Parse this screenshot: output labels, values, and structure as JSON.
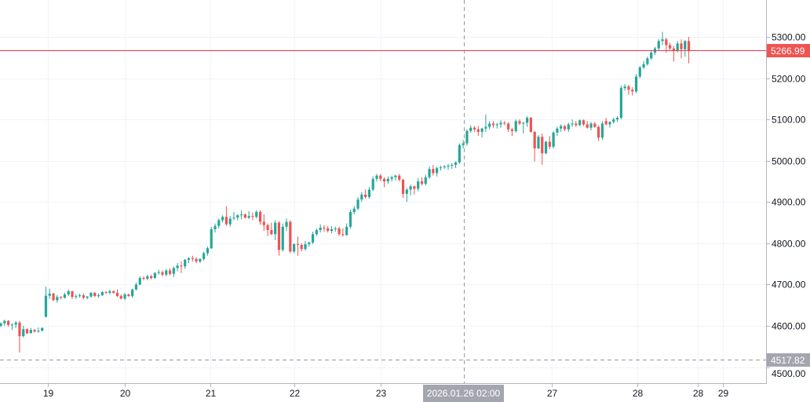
{
  "chart_data": {
    "type": "candlestick",
    "title": "",
    "colors": {
      "up": "#26a69a",
      "down": "#ef5350",
      "price_line": "#f23645",
      "crosshair": "#9598a1",
      "grid": "#f0f3fa"
    },
    "ylim": [
      4480,
      5400
    ],
    "y_ticks": [
      "4500.00",
      "4600.00",
      "4700.00",
      "4800.00",
      "4900.00",
      "5000.00",
      "5100.00",
      "5200.00",
      "5300.00"
    ],
    "y_tick_values": [
      4500,
      4600,
      4700,
      4800,
      4900,
      5000,
      5100,
      5200,
      5300
    ],
    "x_ticks": [
      "19",
      "20",
      "21",
      "22",
      "23",
      "27",
      "28",
      "28",
      "29"
    ],
    "crosshair_time_label": "2026.01.26 02:00",
    "last_price": 5266.99,
    "last_price_label": "5266.99",
    "crosshair_price": 4517.82,
    "crosshair_price_label": "4517.82",
    "candles_ohlc": [
      [
        4600,
        4608,
        4597,
        4606
      ],
      [
        4606,
        4615,
        4600,
        4612
      ],
      [
        4612,
        4614,
        4598,
        4602
      ],
      [
        4602,
        4606,
        4590,
        4603
      ],
      [
        4603,
        4612,
        4595,
        4608
      ],
      [
        4608,
        4612,
        4535,
        4575
      ],
      [
        4575,
        4600,
        4572,
        4592
      ],
      [
        4592,
        4594,
        4580,
        4582
      ],
      [
        4582,
        4595,
        4582,
        4590
      ],
      [
        4590,
        4592,
        4584,
        4586
      ],
      [
        4586,
        4596,
        4583,
        4588
      ],
      [
        4588,
        4596,
        4587,
        4595
      ],
      [
        4622,
        4695,
        4620,
        4673
      ],
      [
        4673,
        4690,
        4665,
        4678
      ],
      [
        4678,
        4680,
        4660,
        4662
      ],
      [
        4662,
        4675,
        4656,
        4670
      ],
      [
        4670,
        4672,
        4664,
        4668
      ],
      [
        4668,
        4680,
        4666,
        4676
      ],
      [
        4676,
        4688,
        4672,
        4684
      ],
      [
        4684,
        4685,
        4665,
        4670
      ],
      [
        4670,
        4676,
        4665,
        4672
      ],
      [
        4672,
        4678,
        4668,
        4674
      ],
      [
        4674,
        4678,
        4664,
        4668
      ],
      [
        4668,
        4672,
        4664,
        4671
      ],
      [
        4671,
        4682,
        4668,
        4680
      ],
      [
        4680,
        4682,
        4670,
        4672
      ],
      [
        4672,
        4678,
        4668,
        4674
      ],
      [
        4674,
        4684,
        4672,
        4682
      ],
      [
        4682,
        4684,
        4677,
        4680
      ],
      [
        4680,
        4688,
        4676,
        4684
      ],
      [
        4684,
        4686,
        4678,
        4680
      ],
      [
        4680,
        4688,
        4670,
        4672
      ],
      [
        4672,
        4676,
        4664,
        4666
      ],
      [
        4666,
        4680,
        4662,
        4676
      ],
      [
        4676,
        4678,
        4670,
        4672
      ],
      [
        4672,
        4690,
        4668,
        4688
      ],
      [
        4688,
        4705,
        4686,
        4700
      ],
      [
        4700,
        4720,
        4698,
        4716
      ],
      [
        4716,
        4720,
        4710,
        4714
      ],
      [
        4714,
        4724,
        4710,
        4720
      ],
      [
        4720,
        4724,
        4712,
        4716
      ],
      [
        4716,
        4730,
        4714,
        4728
      ],
      [
        4728,
        4736,
        4724,
        4730
      ],
      [
        4730,
        4734,
        4720,
        4724
      ],
      [
        4724,
        4738,
        4720,
        4734
      ],
      [
        4734,
        4740,
        4722,
        4726
      ],
      [
        4726,
        4744,
        4718,
        4740
      ],
      [
        4740,
        4752,
        4732,
        4746
      ],
      [
        4746,
        4756,
        4728,
        4744
      ],
      [
        4744,
        4762,
        4738,
        4760
      ],
      [
        4760,
        4766,
        4752,
        4764
      ],
      [
        4764,
        4770,
        4756,
        4762
      ],
      [
        4762,
        4766,
        4752,
        4756
      ],
      [
        4756,
        4764,
        4752,
        4762
      ],
      [
        4762,
        4780,
        4758,
        4776
      ],
      [
        4776,
        4792,
        4770,
        4788
      ],
      [
        4788,
        4840,
        4786,
        4834
      ],
      [
        4834,
        4848,
        4826,
        4842
      ],
      [
        4842,
        4860,
        4836,
        4856
      ],
      [
        4856,
        4868,
        4850,
        4864
      ],
      [
        4864,
        4890,
        4842,
        4846
      ],
      [
        4846,
        4866,
        4840,
        4860
      ],
      [
        4860,
        4876,
        4856,
        4862
      ],
      [
        4862,
        4870,
        4856,
        4868
      ],
      [
        4868,
        4880,
        4858,
        4870
      ],
      [
        4870,
        4872,
        4860,
        4862
      ],
      [
        4862,
        4878,
        4858,
        4866
      ],
      [
        4866,
        4874,
        4856,
        4864
      ],
      [
        4864,
        4880,
        4860,
        4876
      ],
      [
        4876,
        4880,
        4845,
        4852
      ],
      [
        4852,
        4870,
        4830,
        4844
      ],
      [
        4844,
        4848,
        4818,
        4832
      ],
      [
        4832,
        4850,
        4820,
        4822
      ],
      [
        4822,
        4856,
        4808,
        4850
      ],
      [
        4850,
        4854,
        4770,
        4784
      ],
      [
        4784,
        4848,
        4780,
        4840
      ],
      [
        4840,
        4860,
        4830,
        4852
      ],
      [
        4852,
        4856,
        4776,
        4780
      ],
      [
        4780,
        4800,
        4776,
        4798
      ],
      [
        4798,
        4816,
        4770,
        4796
      ],
      [
        4796,
        4800,
        4780,
        4786
      ],
      [
        4786,
        4806,
        4782,
        4798
      ],
      [
        4798,
        4804,
        4792,
        4802
      ],
      [
        4802,
        4828,
        4798,
        4822
      ],
      [
        4822,
        4836,
        4818,
        4832
      ],
      [
        4832,
        4846,
        4826,
        4838
      ],
      [
        4838,
        4844,
        4828,
        4836
      ],
      [
        4836,
        4842,
        4826,
        4830
      ],
      [
        4830,
        4842,
        4824,
        4834
      ],
      [
        4834,
        4840,
        4828,
        4836
      ],
      [
        4836,
        4840,
        4818,
        4822
      ],
      [
        4822,
        4836,
        4816,
        4820
      ],
      [
        4820,
        4848,
        4818,
        4840
      ],
      [
        4840,
        4882,
        4836,
        4876
      ],
      [
        4876,
        4890,
        4870,
        4884
      ],
      [
        4884,
        4912,
        4880,
        4906
      ],
      [
        4906,
        4924,
        4900,
        4918
      ],
      [
        4918,
        4930,
        4908,
        4912
      ],
      [
        4912,
        4936,
        4908,
        4930
      ],
      [
        4930,
        4962,
        4926,
        4956
      ],
      [
        4956,
        4968,
        4950,
        4964
      ],
      [
        4964,
        4968,
        4950,
        4956
      ],
      [
        4956,
        4960,
        4936,
        4950
      ],
      [
        4950,
        4962,
        4944,
        4956
      ],
      [
        4956,
        4964,
        4950,
        4960
      ],
      [
        4960,
        4966,
        4952,
        4964
      ],
      [
        4964,
        4968,
        4950,
        4954
      ],
      [
        4954,
        4956,
        4910,
        4920
      ],
      [
        4920,
        4934,
        4900,
        4930
      ],
      [
        4930,
        4942,
        4916,
        4938
      ],
      [
        4938,
        4940,
        4918,
        4932
      ],
      [
        4932,
        4958,
        4926,
        4950
      ],
      [
        4950,
        4960,
        4940,
        4944
      ],
      [
        4944,
        4966,
        4940,
        4960
      ],
      [
        4960,
        4986,
        4956,
        4980
      ],
      [
        4980,
        4990,
        4964,
        4970
      ],
      [
        4970,
        4986,
        4962,
        4982
      ],
      [
        4982,
        4988,
        4976,
        4984
      ],
      [
        4984,
        4990,
        4980,
        4986
      ],
      [
        4986,
        4992,
        4978,
        4988
      ],
      [
        4988,
        4994,
        4980,
        4990
      ],
      [
        4990,
        4998,
        4982,
        4996
      ],
      [
        4996,
        5042,
        4992,
        5038
      ],
      [
        5038,
        5050,
        5030,
        5042
      ],
      [
        5042,
        5076,
        5036,
        5072
      ],
      [
        5072,
        5086,
        5068,
        5080
      ],
      [
        5080,
        5084,
        5070,
        5076
      ],
      [
        5076,
        5084,
        5060,
        5070
      ],
      [
        5070,
        5080,
        5056,
        5078
      ],
      [
        5078,
        5112,
        5070,
        5082
      ],
      [
        5082,
        5096,
        5076,
        5090
      ],
      [
        5090,
        5096,
        5080,
        5086
      ],
      [
        5086,
        5092,
        5078,
        5088
      ],
      [
        5088,
        5098,
        5080,
        5092
      ],
      [
        5092,
        5096,
        5086,
        5090
      ],
      [
        5090,
        5094,
        5070,
        5076
      ],
      [
        5076,
        5080,
        5060,
        5072
      ],
      [
        5072,
        5100,
        5068,
        5096
      ],
      [
        5096,
        5100,
        5086,
        5090
      ],
      [
        5090,
        5094,
        5066,
        5092
      ],
      [
        5092,
        5108,
        5082,
        5104
      ],
      [
        5104,
        5106,
        5068,
        5070
      ],
      [
        5070,
        5072,
        4998,
        5030
      ],
      [
        5030,
        5062,
        5028,
        5058
      ],
      [
        5058,
        5066,
        4990,
        5018
      ],
      [
        5018,
        5048,
        5016,
        5046
      ],
      [
        5046,
        5060,
        5028,
        5034
      ],
      [
        5034,
        5072,
        5030,
        5068
      ],
      [
        5068,
        5082,
        5060,
        5078
      ],
      [
        5078,
        5088,
        5070,
        5084
      ],
      [
        5084,
        5086,
        5072,
        5076
      ],
      [
        5076,
        5092,
        5070,
        5088
      ],
      [
        5088,
        5100,
        5082,
        5090
      ],
      [
        5090,
        5096,
        5082,
        5086
      ],
      [
        5086,
        5100,
        5084,
        5098
      ],
      [
        5098,
        5100,
        5084,
        5088
      ],
      [
        5088,
        5096,
        5078,
        5080
      ],
      [
        5080,
        5094,
        5074,
        5090
      ],
      [
        5090,
        5094,
        5080,
        5082
      ],
      [
        5082,
        5086,
        5048,
        5056
      ],
      [
        5056,
        5096,
        5050,
        5090
      ],
      [
        5096,
        5104,
        5086,
        5088
      ],
      [
        5088,
        5096,
        5080,
        5094
      ],
      [
        5094,
        5104,
        5090,
        5100
      ],
      [
        5100,
        5108,
        5094,
        5104
      ],
      [
        5104,
        5182,
        5100,
        5176
      ],
      [
        5176,
        5186,
        5170,
        5180
      ],
      [
        5180,
        5184,
        5160,
        5172
      ],
      [
        5172,
        5178,
        5158,
        5168
      ],
      [
        5168,
        5210,
        5164,
        5204
      ],
      [
        5204,
        5230,
        5200,
        5226
      ],
      [
        5226,
        5242,
        5222,
        5234
      ],
      [
        5234,
        5252,
        5230,
        5248
      ],
      [
        5248,
        5266,
        5244,
        5262
      ],
      [
        5262,
        5276,
        5256,
        5272
      ],
      [
        5272,
        5294,
        5268,
        5290
      ],
      [
        5290,
        5312,
        5280,
        5294
      ],
      [
        5294,
        5298,
        5262,
        5280
      ],
      [
        5280,
        5286,
        5268,
        5272
      ],
      [
        5272,
        5278,
        5240,
        5266
      ],
      [
        5266,
        5290,
        5262,
        5284
      ],
      [
        5284,
        5294,
        5248,
        5270
      ],
      [
        5270,
        5292,
        5252,
        5290
      ],
      [
        5290,
        5300,
        5236,
        5266.99
      ]
    ]
  }
}
